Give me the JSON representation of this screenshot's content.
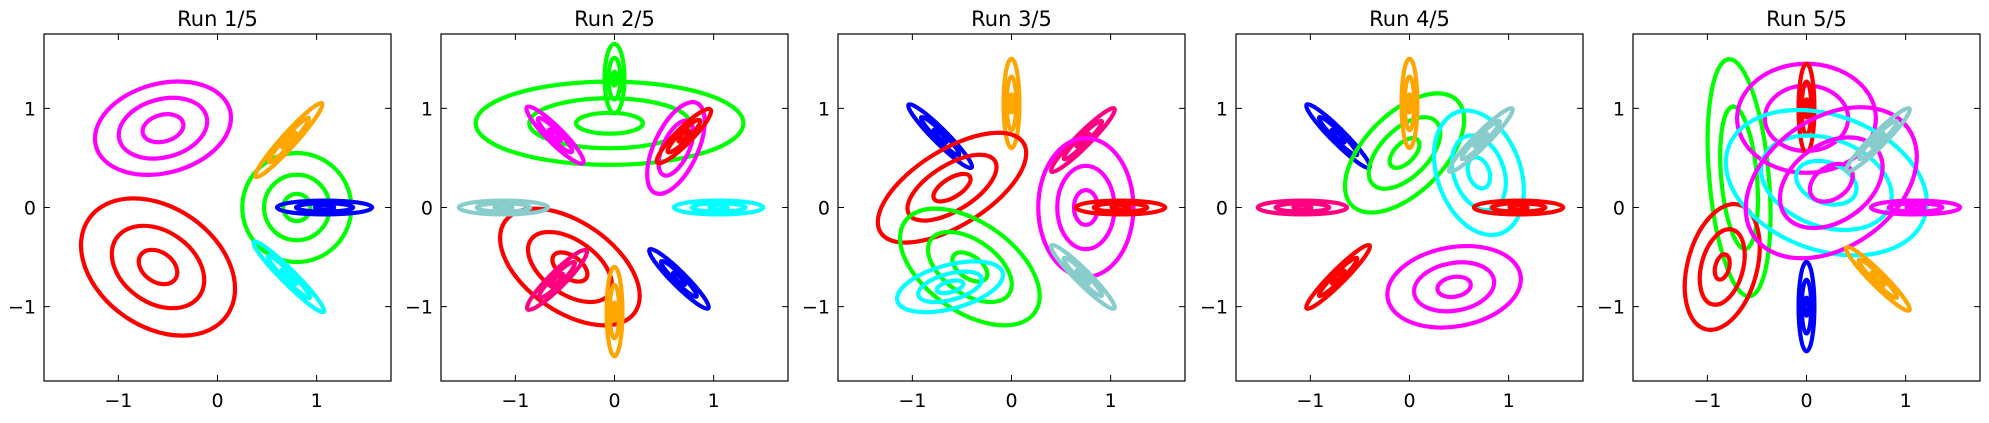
{
  "figure": {
    "background": "#ffffff"
  },
  "chart_data": [
    {
      "type": "scatter",
      "title": "Run 1/5",
      "xlim": [
        -1.75,
        1.75
      ],
      "ylim": [
        -1.75,
        1.75
      ],
      "xticks": [
        -1,
        0,
        1
      ],
      "yticks": [
        -1,
        0,
        1
      ],
      "grid": false,
      "ellipses": [
        {
          "color": "#ff00ff",
          "center": [
            -0.55,
            0.8
          ],
          "rx": 0.7,
          "ry": 0.45,
          "angle": 15,
          "levels": [
            1.0,
            0.65,
            0.3
          ]
        },
        {
          "color": "#ff0000",
          "center": [
            -0.6,
            -0.6
          ],
          "rx": 0.85,
          "ry": 0.6,
          "angle": -35,
          "levels": [
            1.0,
            0.6,
            0.25
          ]
        },
        {
          "color": "#00ff00",
          "center": [
            0.8,
            0.0
          ],
          "rx": 0.55,
          "ry": 0.55,
          "angle": 0,
          "levels": [
            1.0,
            0.6,
            0.25
          ]
        },
        {
          "color": "#ffa500",
          "center": [
            0.72,
            0.68
          ],
          "rx": 0.5,
          "ry": 0.07,
          "angle": 48,
          "levels": [
            1.0,
            0.6,
            0.2
          ]
        },
        {
          "color": "#00ffff",
          "center": [
            0.72,
            -0.7
          ],
          "rx": 0.5,
          "ry": 0.07,
          "angle": -45,
          "levels": [
            1.0,
            0.6,
            0.2
          ]
        },
        {
          "color": "#0000ff",
          "center": [
            1.08,
            0.0
          ],
          "rx": 0.48,
          "ry": 0.07,
          "angle": 0,
          "levels": [
            1.0,
            0.6,
            0.2
          ]
        }
      ]
    },
    {
      "type": "scatter",
      "title": "Run 2/5",
      "xlim": [
        -1.75,
        1.75
      ],
      "ylim": [
        -1.75,
        1.75
      ],
      "xticks": [
        -1,
        0,
        1
      ],
      "yticks": [
        -1,
        0,
        1
      ],
      "grid": false,
      "ellipses": [
        {
          "color": "#00ff00",
          "center": [
            -0.05,
            0.85
          ],
          "rx": 1.35,
          "ry": 0.42,
          "angle": 0,
          "levels": [
            1.0,
            0.6,
            0.25
          ]
        },
        {
          "color": "#00ff00",
          "center": [
            0.0,
            1.3
          ],
          "rx": 0.1,
          "ry": 0.35,
          "angle": 0,
          "levels": [
            1.0,
            0.6,
            0.2
          ]
        },
        {
          "color": "#ff00ff",
          "center": [
            -0.6,
            0.73
          ],
          "rx": 0.4,
          "ry": 0.08,
          "angle": -45,
          "levels": [
            1.0,
            0.6,
            0.2
          ]
        },
        {
          "color": "#ff00ff",
          "center": [
            0.62,
            0.6
          ],
          "rx": 0.5,
          "ry": 0.22,
          "angle": 65,
          "levels": [
            1.0,
            0.6
          ]
        },
        {
          "color": "#ff0000",
          "center": [
            0.7,
            0.72
          ],
          "rx": 0.38,
          "ry": 0.08,
          "angle": 45,
          "levels": [
            1.0,
            0.6,
            0.2
          ]
        },
        {
          "color": "#ff0000",
          "center": [
            -0.45,
            -0.6
          ],
          "rx": 0.8,
          "ry": 0.45,
          "angle": -35,
          "levels": [
            1.0,
            0.6,
            0.25
          ]
        },
        {
          "color": "#00ffff",
          "center": [
            1.05,
            0.0
          ],
          "rx": 0.45,
          "ry": 0.07,
          "angle": 0,
          "levels": [
            1.0,
            0.6,
            0.2
          ]
        },
        {
          "color": "#88cccc",
          "center": [
            -1.12,
            0.0
          ],
          "rx": 0.45,
          "ry": 0.07,
          "angle": 0,
          "levels": [
            1.0,
            0.6,
            0.2
          ]
        },
        {
          "color": "#ff0080",
          "center": [
            -0.58,
            -0.73
          ],
          "rx": 0.42,
          "ry": 0.08,
          "angle": 45,
          "levels": [
            1.0,
            0.6,
            0.2
          ]
        },
        {
          "color": "#ffa500",
          "center": [
            0.0,
            -1.05
          ],
          "rx": 0.08,
          "ry": 0.45,
          "angle": 0,
          "levels": [
            1.0,
            0.6,
            0.2
          ]
        },
        {
          "color": "#0000ff",
          "center": [
            0.65,
            -0.72
          ],
          "rx": 0.42,
          "ry": 0.07,
          "angle": -45,
          "levels": [
            1.0,
            0.6,
            0.2
          ]
        }
      ]
    },
    {
      "type": "scatter",
      "title": "Run 3/5",
      "xlim": [
        -1.75,
        1.75
      ],
      "ylim": [
        -1.75,
        1.75
      ],
      "xticks": [
        -1,
        0,
        1
      ],
      "yticks": [
        -1,
        0,
        1
      ],
      "grid": false,
      "ellipses": [
        {
          "color": "#0000ff",
          "center": [
            -0.72,
            0.72
          ],
          "rx": 0.45,
          "ry": 0.07,
          "angle": -45,
          "levels": [
            1.0,
            0.6,
            0.2
          ]
        },
        {
          "color": "#ffa500",
          "center": [
            0.0,
            1.05
          ],
          "rx": 0.08,
          "ry": 0.45,
          "angle": 0,
          "levels": [
            1.0,
            0.6,
            0.2
          ]
        },
        {
          "color": "#ff0000",
          "center": [
            -0.6,
            0.2
          ],
          "rx": 0.85,
          "ry": 0.38,
          "angle": 32,
          "levels": [
            1.0,
            0.6,
            0.25
          ]
        },
        {
          "color": "#ff0080",
          "center": [
            0.72,
            0.68
          ],
          "rx": 0.45,
          "ry": 0.07,
          "angle": 45,
          "levels": [
            1.0,
            0.6,
            0.2
          ]
        },
        {
          "color": "#ff00ff",
          "center": [
            0.75,
            0.0
          ],
          "rx": 0.48,
          "ry": 0.7,
          "angle": 0,
          "levels": [
            1.0,
            0.6,
            0.25
          ]
        },
        {
          "color": "#ff0000",
          "center": [
            1.1,
            0.0
          ],
          "rx": 0.45,
          "ry": 0.07,
          "angle": 0,
          "levels": [
            1.0,
            0.6,
            0.2
          ]
        },
        {
          "color": "#00ff00",
          "center": [
            -0.42,
            -0.6
          ],
          "rx": 0.8,
          "ry": 0.45,
          "angle": -35,
          "levels": [
            1.0,
            0.6,
            0.25
          ]
        },
        {
          "color": "#00ffff",
          "center": [
            -0.62,
            -0.8
          ],
          "rx": 0.55,
          "ry": 0.22,
          "angle": 15,
          "levels": [
            1.0,
            0.6,
            0.25
          ]
        },
        {
          "color": "#88cccc",
          "center": [
            0.72,
            -0.7
          ],
          "rx": 0.45,
          "ry": 0.07,
          "angle": -45,
          "levels": [
            1.0,
            0.6,
            0.2
          ]
        }
      ]
    },
    {
      "type": "scatter",
      "title": "Run 4/5",
      "xlim": [
        -1.75,
        1.75
      ],
      "ylim": [
        -1.75,
        1.75
      ],
      "xticks": [
        -1,
        0,
        1
      ],
      "yticks": [
        -1,
        0,
        1
      ],
      "grid": false,
      "ellipses": [
        {
          "color": "#0000ff",
          "center": [
            -0.72,
            0.72
          ],
          "rx": 0.45,
          "ry": 0.07,
          "angle": -45,
          "levels": [
            1.0,
            0.6,
            0.2
          ]
        },
        {
          "color": "#00ff00",
          "center": [
            -0.05,
            0.55
          ],
          "rx": 0.75,
          "ry": 0.4,
          "angle": 45,
          "levels": [
            1.0,
            0.6,
            0.25
          ]
        },
        {
          "color": "#ffa500",
          "center": [
            0.0,
            1.05
          ],
          "rx": 0.08,
          "ry": 0.45,
          "angle": 0,
          "levels": [
            1.0,
            0.6,
            0.2
          ]
        },
        {
          "color": "#00ffff",
          "center": [
            0.7,
            0.35
          ],
          "rx": 0.42,
          "ry": 0.65,
          "angle": 20,
          "levels": [
            1.0,
            0.6,
            0.25
          ]
        },
        {
          "color": "#88cccc",
          "center": [
            0.72,
            0.68
          ],
          "rx": 0.45,
          "ry": 0.07,
          "angle": 45,
          "levels": [
            1.0,
            0.6,
            0.2
          ]
        },
        {
          "color": "#ff0080",
          "center": [
            -1.08,
            0.0
          ],
          "rx": 0.45,
          "ry": 0.07,
          "angle": 0,
          "levels": [
            1.0,
            0.6,
            0.2
          ]
        },
        {
          "color": "#ff0000",
          "center": [
            1.1,
            0.0
          ],
          "rx": 0.45,
          "ry": 0.07,
          "angle": 0,
          "levels": [
            1.0,
            0.6,
            0.2
          ]
        },
        {
          "color": "#ff0000",
          "center": [
            -0.72,
            -0.7
          ],
          "rx": 0.45,
          "ry": 0.07,
          "angle": 45,
          "levels": [
            1.0,
            0.6,
            0.2
          ]
        },
        {
          "color": "#ff00ff",
          "center": [
            0.45,
            -0.8
          ],
          "rx": 0.68,
          "ry": 0.4,
          "angle": 10,
          "levels": [
            1.0,
            0.6,
            0.25
          ]
        }
      ]
    },
    {
      "type": "scatter",
      "title": "Run 5/5",
      "xlim": [
        -1.75,
        1.75
      ],
      "ylim": [
        -1.75,
        1.75
      ],
      "xticks": [
        -1,
        0,
        1
      ],
      "yticks": [
        -1,
        0,
        1
      ],
      "grid": false,
      "ellipses": [
        {
          "color": "#00ff00",
          "center": [
            -0.68,
            0.3
          ],
          "rx": 0.3,
          "ry": 1.2,
          "angle": 5,
          "levels": [
            1.0,
            0.6
          ]
        },
        {
          "color": "#ff0000",
          "center": [
            -0.85,
            -0.6
          ],
          "rx": 0.35,
          "ry": 0.65,
          "angle": -15,
          "levels": [
            1.0,
            0.6,
            0.2
          ]
        },
        {
          "color": "#ff00ff",
          "center": [
            0.0,
            0.9
          ],
          "rx": 0.7,
          "ry": 0.55,
          "angle": 0,
          "levels": [
            1.0,
            0.6
          ]
        },
        {
          "color": "#ff0000",
          "center": [
            0.0,
            1.0
          ],
          "rx": 0.08,
          "ry": 0.45,
          "angle": 0,
          "levels": [
            1.0,
            0.6,
            0.2
          ]
        },
        {
          "color": "#00ffff",
          "center": [
            0.2,
            0.25
          ],
          "rx": 1.05,
          "ry": 0.68,
          "angle": -20,
          "levels": [
            1.0,
            0.65,
            0.3
          ]
        },
        {
          "color": "#ff00ff",
          "center": [
            0.25,
            0.25
          ],
          "rx": 0.95,
          "ry": 0.65,
          "angle": 35,
          "levels": [
            1.0,
            0.6,
            0.25
          ]
        },
        {
          "color": "#88cccc",
          "center": [
            0.72,
            0.68
          ],
          "rx": 0.45,
          "ry": 0.07,
          "angle": 45,
          "levels": [
            1.0,
            0.6,
            0.2
          ]
        },
        {
          "color": "#ff00ff",
          "center": [
            1.1,
            0.0
          ],
          "rx": 0.45,
          "ry": 0.07,
          "angle": 0,
          "levels": [
            1.0,
            0.6,
            0.2
          ]
        },
        {
          "color": "#ffa500",
          "center": [
            0.72,
            -0.72
          ],
          "rx": 0.45,
          "ry": 0.07,
          "angle": -45,
          "levels": [
            1.0,
            0.6,
            0.2
          ]
        },
        {
          "color": "#0000ff",
          "center": [
            0.0,
            -1.0
          ],
          "rx": 0.08,
          "ry": 0.45,
          "angle": 0,
          "levels": [
            1.0,
            0.6,
            0.2
          ]
        }
      ]
    }
  ]
}
